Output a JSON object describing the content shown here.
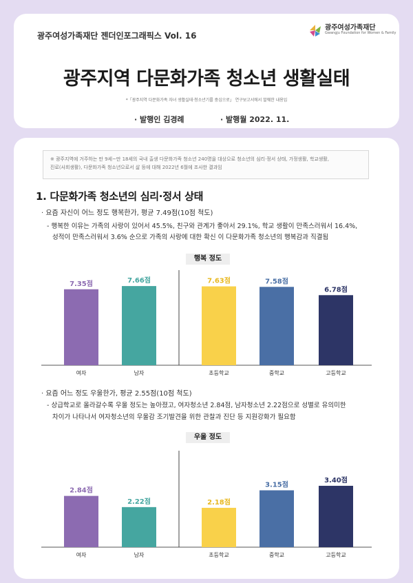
{
  "header": {
    "series": "광주여성가족재단 젠더인포그래픽스 Vol. 16",
    "logo_text": "광주여성가족재단",
    "logo_subtext": "Gwangju Foundation for Women & Family",
    "title": "광주지역 다문화가족 청소년 생활실태",
    "note": "*「광주지역 다문화가족 자녀 생활실태·청소년기를 중심으로」 연구보고서에서 발췌한 내용임",
    "publisher": "· 발행인 김경례",
    "pub_date": "· 발행월 2022. 11."
  },
  "survey_note": {
    "line1": "※ 광주지역에 거주하는 만 9세~만 18세의 국내 출생 다문화가족 청소년 240명을 대상으로 청소년의 심리·정서 상태, 가정생활, 학교생활,",
    "line2": "진로(사회생활), 다문화가족 청소년으로서 삶 등에 대해 2022년 6월에 조사한 결과임"
  },
  "section1": {
    "title": "1. 다문화가족 청소년의 심리·정서 상태",
    "happy_bullet": "· 요즘 자신이 어느 정도 행복한가, 평균 7.49점(10점 척도)",
    "happy_detail1": "- 행복한 이유는 가족의 사랑이 있어서 45.5%, 친구와 관계가 좋아서 29.1%, 학교 생활이 만족스러워서 16.4%,",
    "happy_detail2": "성적이 만족스러워서 3.6% 순으로 가족의 사랑에 대한 확신 이 다문화가족 청소년의 행복감과 직결됨",
    "depress_bullet": "· 요즘 어느 정도 우울한가, 평균 2.55점(10점 척도)",
    "depress_detail1": "- 상급학교로 올라갈수록 우울 정도는 높아졌고, 여자청소년 2.84점, 남자청소년 2.22점으로 성별로 유의미한",
    "depress_detail2": "차이가 나타나서 여자청소년의 우울감 조기발견을 위한 관찰과 진단 등 지원강화가 필요함"
  },
  "chart_data": [
    {
      "type": "bar",
      "title": "행복 정도",
      "categories": [
        "여자",
        "남자",
        "초등학교",
        "중학교",
        "고등학교"
      ],
      "values": [
        7.35,
        7.66,
        7.63,
        7.58,
        6.78
      ],
      "value_labels": [
        "7.35점",
        "7.66점",
        "7.63점",
        "7.58점",
        "6.78점"
      ],
      "colors": [
        "#8c6bb1",
        "#45a6a0",
        "#f9d14a",
        "#4a6fa5",
        "#2d3566"
      ],
      "ylim": [
        0,
        10
      ],
      "grid": false,
      "separator_after_index": 1
    },
    {
      "type": "bar",
      "title": "우울 정도",
      "categories": [
        "여자",
        "남자",
        "초등학교",
        "중학교",
        "고등학교"
      ],
      "values": [
        2.84,
        2.22,
        2.18,
        3.15,
        3.4
      ],
      "value_labels": [
        "2.84점",
        "2.22점",
        "2.18점",
        "3.15점",
        "3.40점"
      ],
      "colors": [
        "#8c6bb1",
        "#45a6a0",
        "#f9d14a",
        "#4a6fa5",
        "#2d3566"
      ],
      "ylim": [
        0,
        4.2
      ],
      "grid": false,
      "separator_after_index": 1
    }
  ]
}
